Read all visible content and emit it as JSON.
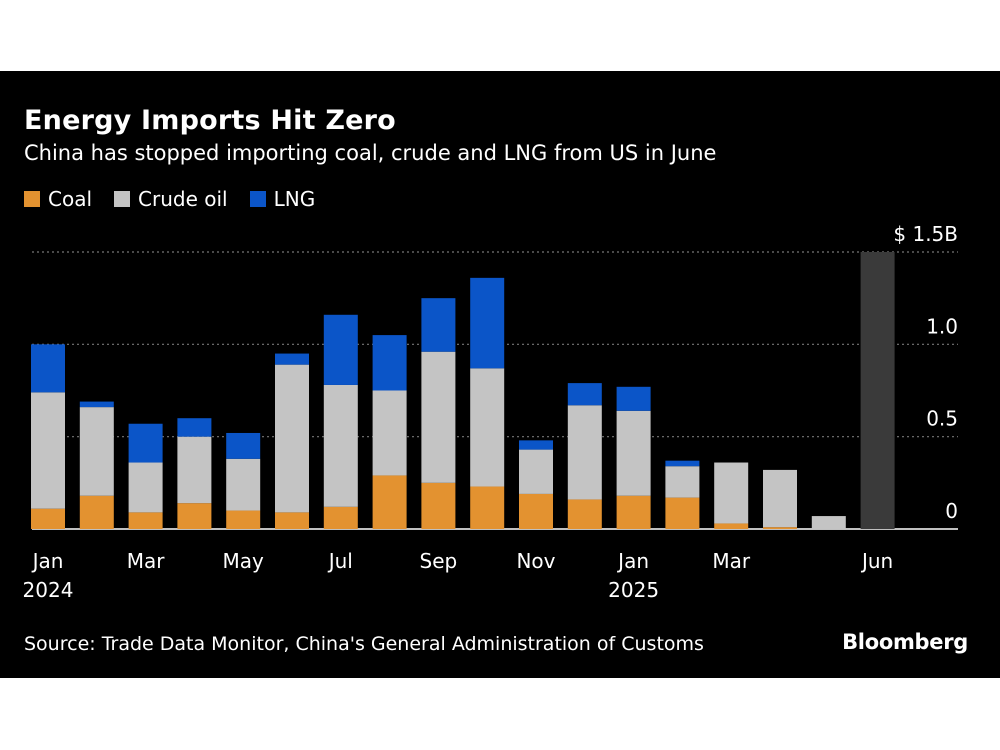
{
  "colors": {
    "background": "#000000",
    "coal": "#e39230",
    "crude_oil": "#c4c4c4",
    "lng": "#0b55c8",
    "highlight": "#3a3a3a",
    "gridline": "#777777",
    "text": "#ffffff"
  },
  "brand": "Bloomberg",
  "source": "Source: Trade Data Monitor, China's General Administration of Customs",
  "chart_data": {
    "type": "bar",
    "stacked": true,
    "title": "Energy Imports Hit Zero",
    "subtitle": "China has stopped importing coal, crude and LNG from US in June",
    "ylabel": "",
    "xlabel": "",
    "ylim": [
      0,
      1.5
    ],
    "yticks": [
      {
        "value": 0,
        "label": "0"
      },
      {
        "value": 0.5,
        "label": "0.5"
      },
      {
        "value": 1.0,
        "label": "1.0"
      },
      {
        "value": 1.5,
        "label": "$ 1.5B"
      }
    ],
    "grid": true,
    "legend_position": "top-left",
    "categories": [
      "Jan 2024",
      "Feb 2024",
      "Mar 2024",
      "Apr 2024",
      "May 2024",
      "Jun 2024",
      "Jul 2024",
      "Aug 2024",
      "Sep 2024",
      "Oct 2024",
      "Nov 2024",
      "Dec 2024",
      "Jan 2025",
      "Feb 2025",
      "Mar 2025",
      "Apr 2025",
      "May 2025",
      "Jun 2025"
    ],
    "xtick_labels": [
      {
        "index": 0,
        "lines": [
          "Jan",
          "2024"
        ]
      },
      {
        "index": 2,
        "lines": [
          "Mar"
        ]
      },
      {
        "index": 4,
        "lines": [
          "May"
        ]
      },
      {
        "index": 6,
        "lines": [
          "Jul"
        ]
      },
      {
        "index": 8,
        "lines": [
          "Sep"
        ]
      },
      {
        "index": 10,
        "lines": [
          "Nov"
        ]
      },
      {
        "index": 12,
        "lines": [
          "Jan",
          "2025"
        ]
      },
      {
        "index": 14,
        "lines": [
          "Mar"
        ]
      },
      {
        "index": 17,
        "lines": [
          "Jun"
        ]
      }
    ],
    "highlight_index": 17,
    "series": [
      {
        "name": "Coal",
        "values": [
          0.11,
          0.18,
          0.09,
          0.14,
          0.1,
          0.09,
          0.12,
          0.29,
          0.25,
          0.23,
          0.19,
          0.16,
          0.18,
          0.17,
          0.03,
          0.01,
          0.0,
          0.0
        ]
      },
      {
        "name": "Crude oil",
        "values": [
          0.63,
          0.48,
          0.27,
          0.36,
          0.28,
          0.8,
          0.66,
          0.46,
          0.71,
          0.64,
          0.24,
          0.51,
          0.46,
          0.17,
          0.33,
          0.31,
          0.07,
          0.0
        ]
      },
      {
        "name": "LNG",
        "values": [
          0.26,
          0.03,
          0.21,
          0.1,
          0.14,
          0.06,
          0.38,
          0.3,
          0.29,
          0.49,
          0.05,
          0.12,
          0.13,
          0.03,
          0.0,
          0.0,
          0.0,
          0.0
        ]
      }
    ]
  }
}
